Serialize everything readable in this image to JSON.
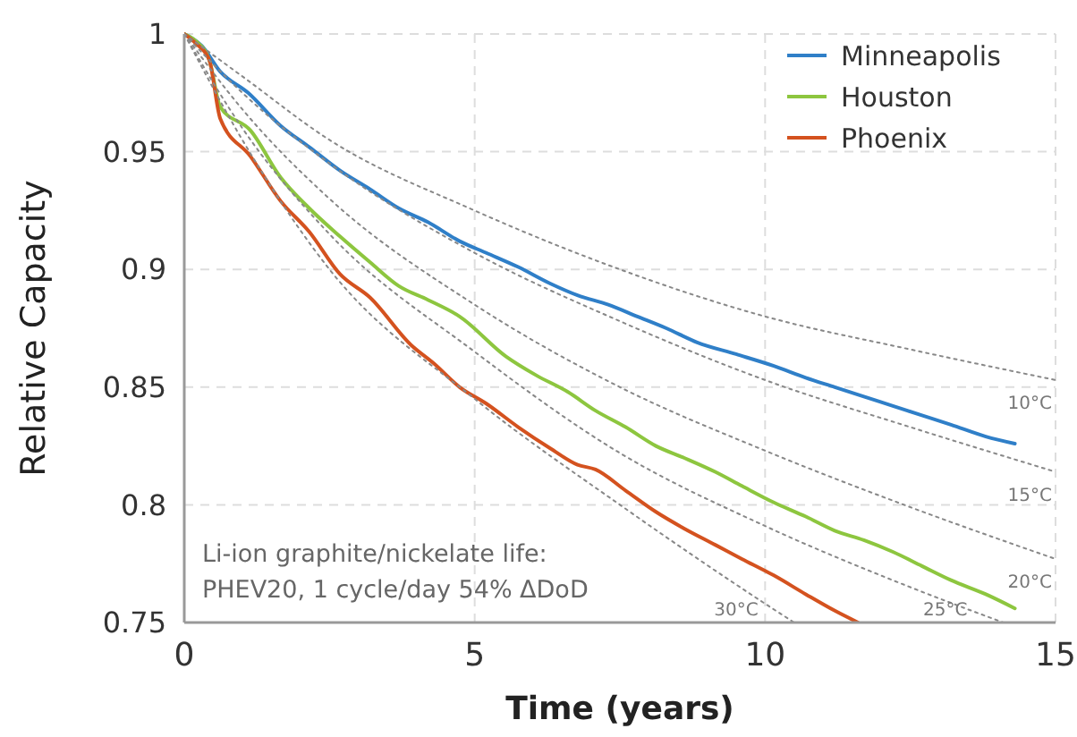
{
  "chart_data": {
    "type": "line",
    "xlabel": "Time (years)",
    "ylabel": "Relative Capacity",
    "xlim": [
      0,
      15
    ],
    "ylim": [
      0.75,
      1
    ],
    "xticks": [
      0,
      5,
      10,
      15
    ],
    "yticks": [
      {
        "value": 0.75,
        "label": "0.75"
      },
      {
        "value": 0.8,
        "label": "0.8"
      },
      {
        "value": 0.85,
        "label": "0.85"
      },
      {
        "value": 0.9,
        "label": "0.9"
      },
      {
        "value": 0.95,
        "label": "0.95"
      },
      1
    ],
    "grid": true,
    "legend": "top right",
    "marker": "none",
    "annotations": [
      "Li-ion graphite/nickelate life:\nPHEV20, 1 cycle/day 54% ΔDoD"
    ],
    "series": [
      {
        "name": "Minneapolis",
        "color": "#2f7fc8",
        "x": [
          0,
          0.3,
          0.62,
          1.1,
          1.66,
          2.15,
          2.68,
          3.2,
          3.69,
          4.2,
          4.74,
          5.2,
          5.75,
          6.3,
          6.77,
          7.3,
          7.8,
          8.3,
          8.83,
          9.5,
          10.15,
          10.7,
          11.2,
          11.7,
          12.2,
          12.7,
          13.2,
          13.8,
          14.3
        ],
        "values": [
          1,
          0.995,
          0.984,
          0.975,
          0.961,
          0.952,
          0.942,
          0.934,
          0.926,
          0.92,
          0.912,
          0.907,
          0.901,
          0.894,
          0.889,
          0.885,
          0.88,
          0.875,
          0.869,
          0.864,
          0.859,
          0.854,
          0.85,
          0.846,
          0.842,
          0.838,
          0.834,
          0.829,
          0.826
        ]
      },
      {
        "name": "Houston",
        "color": "#8dc63f",
        "x": [
          0,
          0.2,
          0.43,
          0.62,
          1.14,
          1.66,
          2.15,
          2.68,
          3.2,
          3.69,
          4.2,
          4.74,
          5.54,
          6.06,
          6.6,
          7.08,
          7.6,
          8.12,
          8.6,
          9.14,
          9.6,
          10.15,
          10.7,
          11.2,
          11.7,
          12.2,
          12.7,
          13.2,
          13.8,
          14.3
        ],
        "values": [
          1,
          0.997,
          0.989,
          0.969,
          0.959,
          0.939,
          0.926,
          0.914,
          0.903,
          0.893,
          0.887,
          0.88,
          0.863,
          0.855,
          0.848,
          0.84,
          0.833,
          0.825,
          0.82,
          0.814,
          0.808,
          0.801,
          0.795,
          0.789,
          0.785,
          0.78,
          0.774,
          0.768,
          0.762,
          0.756
        ]
      },
      {
        "name": "Phoenix",
        "color": "#d4521f",
        "x": [
          0,
          0.2,
          0.43,
          0.62,
          1.14,
          1.66,
          2.15,
          2.68,
          3.2,
          3.9,
          4.3,
          4.74,
          5.2,
          5.75,
          6.3,
          6.77,
          7.08,
          7.6,
          8.12,
          8.6,
          9.14,
          9.6,
          10.15,
          10.7,
          11.2,
          11.6
        ],
        "values": [
          1,
          0.996,
          0.989,
          0.964,
          0.948,
          0.929,
          0.916,
          0.898,
          0.888,
          0.868,
          0.86,
          0.85,
          0.843,
          0.833,
          0.824,
          0.817,
          0.815,
          0.806,
          0.797,
          0.79,
          0.783,
          0.777,
          0.77,
          0.762,
          0.755,
          0.75
        ]
      },
      {
        "name": "10°C",
        "color": "#888888",
        "line_style": "dotted",
        "x": [
          0,
          1,
          2.5,
          5,
          7.5,
          10,
          12.5,
          15
        ],
        "values": [
          1,
          0.982,
          0.955,
          0.925,
          0.9,
          0.88,
          0.866,
          0.853
        ]
      },
      {
        "name": "15°C",
        "color": "#888888",
        "line_style": "dotted",
        "x": [
          0,
          1,
          2.5,
          5,
          7.5,
          10,
          12.5,
          15
        ],
        "values": [
          1,
          0.975,
          0.945,
          0.907,
          0.878,
          0.853,
          0.833,
          0.814
        ]
      },
      {
        "name": "20°C",
        "color": "#888888",
        "line_style": "dotted",
        "x": [
          0,
          1,
          2.5,
          5,
          7.5,
          10,
          12.5,
          15
        ],
        "values": [
          1,
          0.968,
          0.93,
          0.885,
          0.85,
          0.823,
          0.799,
          0.777
        ]
      },
      {
        "name": "25°C",
        "color": "#888888",
        "line_style": "dotted",
        "x": [
          0,
          1,
          2.5,
          5,
          7.5,
          10,
          12.5,
          14.1
        ],
        "values": [
          1,
          0.96,
          0.915,
          0.865,
          0.822,
          0.791,
          0.765,
          0.75
        ]
      },
      {
        "name": "30°C",
        "color": "#888888",
        "line_style": "dotted",
        "x": [
          0,
          1,
          2.5,
          5,
          7.5,
          10,
          10.5
        ],
        "values": [
          1,
          0.955,
          0.9,
          0.845,
          0.8,
          0.758,
          0.75
        ]
      }
    ]
  }
}
